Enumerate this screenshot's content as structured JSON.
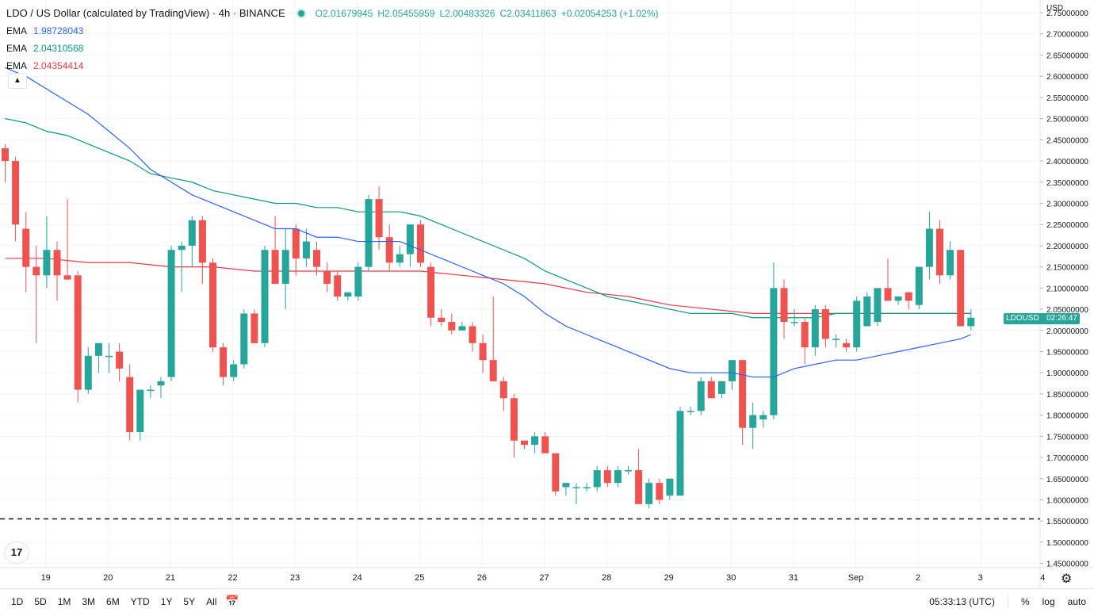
{
  "header": {
    "title": "LDO / US Dollar (calculated by TradingView) · 4h · BINANCE",
    "ohlc": [
      {
        "k": "O",
        "v": "2.01679945"
      },
      {
        "k": "H",
        "v": "2.05455959"
      },
      {
        "k": "L",
        "v": "2.00483326"
      },
      {
        "k": "C",
        "v": "2.03411863"
      }
    ],
    "change": "+0.02054253 (+1.02%)",
    "emas": [
      {
        "label": "EMA",
        "value": "1.98728043",
        "color": "#2962ff"
      },
      {
        "label": "EMA",
        "value": "2.04310568",
        "color": "#089981"
      },
      {
        "label": "EMA",
        "value": "2.04354414",
        "color": "#f23645"
      }
    ]
  },
  "price_axis": {
    "currency": "USD"
  },
  "price_tag": {
    "symbol": "LDOUSD",
    "countdown": "02:26:47"
  },
  "bottom_bar": {
    "timeframes": [
      "1D",
      "5D",
      "1M",
      "3M",
      "6M",
      "YTD",
      "1Y",
      "5Y",
      "All"
    ],
    "clock": "05:33:13 (UTC)",
    "percent_label": "%",
    "log_label": "log",
    "auto_label": "auto"
  },
  "icons": {
    "calendar": "calendar-range-icon",
    "settings": "gear-icon",
    "collapse": "chevron-up-icon",
    "logo": "tradingview-logo-icon"
  },
  "colors": {
    "up": "#26a69a",
    "down": "#ef5350",
    "ema_fast": "#2962ff",
    "ema_mid": "#089981",
    "ema_slow": "#f23645"
  },
  "chart_data": {
    "type": "candlestick",
    "y_ticks": [
      "1.45000000",
      "1.50000000",
      "1.55000000",
      "1.60000000",
      "1.65000000",
      "1.70000000",
      "1.75000000",
      "1.80000000",
      "1.85000000",
      "1.90000000",
      "1.95000000",
      "2.00000000",
      "2.05000000",
      "2.10000000",
      "2.15000000",
      "2.20000000",
      "2.25000000",
      "2.30000000",
      "2.35000000",
      "2.40000000",
      "2.45000000",
      "2.50000000",
      "2.55000000",
      "2.60000000",
      "2.65000000",
      "2.70000000",
      "2.75000000"
    ],
    "ylim": [
      1.44,
      2.78
    ],
    "x_ticks": [
      {
        "label": "19",
        "i": 2
      },
      {
        "label": "20",
        "i": 8
      },
      {
        "label": "21",
        "i": 14
      },
      {
        "label": "22",
        "i": 20
      },
      {
        "label": "23",
        "i": 26
      },
      {
        "label": "24",
        "i": 32
      },
      {
        "label": "25",
        "i": 38
      },
      {
        "label": "26",
        "i": 44
      },
      {
        "label": "27",
        "i": 50
      },
      {
        "label": "28",
        "i": 56
      },
      {
        "label": "29",
        "i": 62
      },
      {
        "label": "30",
        "i": 68
      },
      {
        "label": "31",
        "i": 74
      },
      {
        "label": "Sep",
        "i": 80
      },
      {
        "label": "2",
        "i": 86
      },
      {
        "label": "3",
        "i": 92
      },
      {
        "label": "4",
        "i": 98
      }
    ],
    "candles": [
      [
        2.43,
        2.44,
        2.35,
        2.4
      ],
      [
        2.4,
        2.41,
        2.21,
        2.25
      ],
      [
        2.24,
        2.28,
        2.09,
        2.15
      ],
      [
        2.15,
        2.2,
        1.97,
        2.13
      ],
      [
        2.13,
        2.27,
        2.1,
        2.19
      ],
      [
        2.19,
        2.21,
        2.07,
        2.13
      ],
      [
        2.13,
        2.31,
        2.12,
        2.12
      ],
      [
        2.13,
        2.14,
        1.83,
        1.86
      ],
      [
        1.86,
        1.96,
        1.85,
        1.94
      ],
      [
        1.94,
        1.97,
        1.9,
        1.97
      ],
      [
        1.94,
        1.97,
        1.9,
        1.94
      ],
      [
        1.95,
        1.97,
        1.88,
        1.91
      ],
      [
        1.89,
        1.92,
        1.74,
        1.76
      ],
      [
        1.76,
        1.86,
        1.74,
        1.86
      ],
      [
        1.86,
        1.87,
        1.84,
        1.86
      ],
      [
        1.87,
        1.89,
        1.84,
        1.88
      ],
      [
        1.89,
        2.2,
        1.88,
        2.19
      ],
      [
        2.19,
        2.21,
        2.09,
        2.2
      ],
      [
        2.2,
        2.27,
        2.15,
        2.26
      ],
      [
        2.26,
        2.27,
        2.11,
        2.16
      ],
      [
        2.16,
        2.17,
        1.95,
        1.96
      ],
      [
        1.96,
        1.97,
        1.87,
        1.89
      ],
      [
        1.89,
        1.93,
        1.88,
        1.92
      ],
      [
        1.92,
        2.05,
        1.91,
        2.04
      ],
      [
        2.04,
        2.05,
        1.97,
        1.97
      ],
      [
        1.97,
        2.2,
        1.96,
        2.19
      ],
      [
        2.19,
        2.27,
        2.11,
        2.11
      ],
      [
        2.11,
        2.24,
        2.05,
        2.19
      ],
      [
        2.24,
        2.25,
        2.13,
        2.17
      ],
      [
        2.17,
        2.24,
        2.15,
        2.21
      ],
      [
        2.19,
        2.21,
        2.13,
        2.15
      ],
      [
        2.14,
        2.16,
        2.09,
        2.11
      ],
      [
        2.13,
        2.14,
        2.07,
        2.08
      ],
      [
        2.08,
        2.09,
        2.07,
        2.09
      ],
      [
        2.08,
        2.16,
        2.07,
        2.15
      ],
      [
        2.15,
        2.32,
        2.14,
        2.31
      ],
      [
        2.31,
        2.34,
        2.19,
        2.22
      ],
      [
        2.22,
        2.25,
        2.14,
        2.16
      ],
      [
        2.16,
        2.2,
        2.15,
        2.18
      ],
      [
        2.18,
        2.25,
        2.15,
        2.25
      ],
      [
        2.25,
        2.26,
        2.15,
        2.16
      ],
      [
        2.15,
        2.16,
        2.01,
        2.03
      ],
      [
        2.03,
        2.05,
        2.01,
        2.02
      ],
      [
        2.02,
        2.04,
        1.99,
        2.0
      ],
      [
        2.0,
        2.02,
        2.0,
        2.01
      ],
      [
        2.01,
        2.02,
        1.95,
        1.97
      ],
      [
        1.97,
        1.99,
        1.9,
        1.93
      ],
      [
        1.93,
        2.08,
        1.88,
        1.88
      ],
      [
        1.88,
        1.89,
        1.81,
        1.84
      ],
      [
        1.84,
        1.85,
        1.7,
        1.74
      ],
      [
        1.74,
        1.74,
        1.72,
        1.73
      ],
      [
        1.73,
        1.76,
        1.71,
        1.75
      ],
      [
        1.75,
        1.76,
        1.71,
        1.71
      ],
      [
        1.71,
        1.71,
        1.61,
        1.62
      ],
      [
        1.63,
        1.64,
        1.61,
        1.64
      ],
      [
        1.63,
        1.64,
        1.59,
        1.63
      ],
      [
        1.63,
        1.64,
        1.62,
        1.63
      ],
      [
        1.63,
        1.68,
        1.62,
        1.67
      ],
      [
        1.67,
        1.68,
        1.63,
        1.64
      ],
      [
        1.64,
        1.68,
        1.63,
        1.67
      ],
      [
        1.67,
        1.68,
        1.66,
        1.67
      ],
      [
        1.67,
        1.72,
        1.6,
        1.59
      ],
      [
        1.59,
        1.65,
        1.58,
        1.64
      ],
      [
        1.64,
        1.65,
        1.59,
        1.6
      ],
      [
        1.61,
        1.65,
        1.6,
        1.65
      ],
      [
        1.61,
        1.82,
        1.61,
        1.81
      ],
      [
        1.81,
        1.82,
        1.8,
        1.81
      ],
      [
        1.81,
        1.89,
        1.8,
        1.88
      ],
      [
        1.88,
        1.89,
        1.84,
        1.84
      ],
      [
        1.85,
        1.88,
        1.84,
        1.88
      ],
      [
        1.88,
        1.93,
        1.86,
        1.93
      ],
      [
        1.93,
        1.93,
        1.73,
        1.77
      ],
      [
        1.77,
        1.83,
        1.72,
        1.8
      ],
      [
        1.79,
        1.81,
        1.77,
        1.8
      ],
      [
        1.8,
        2.16,
        1.79,
        2.1
      ],
      [
        2.1,
        2.12,
        1.98,
        2.02
      ],
      [
        2.02,
        2.05,
        2.01,
        2.02
      ],
      [
        2.02,
        2.03,
        1.92,
        1.96
      ],
      [
        1.96,
        2.06,
        1.94,
        2.05
      ],
      [
        2.05,
        2.06,
        1.96,
        1.98
      ],
      [
        1.98,
        1.99,
        1.96,
        1.98
      ],
      [
        1.97,
        1.98,
        1.95,
        1.96
      ],
      [
        1.96,
        2.08,
        1.95,
        2.07
      ],
      [
        2.01,
        2.09,
        2.01,
        2.08
      ],
      [
        2.02,
        2.1,
        2.01,
        2.1
      ],
      [
        2.1,
        2.17,
        2.07,
        2.07
      ],
      [
        2.07,
        2.08,
        2.06,
        2.08
      ],
      [
        2.09,
        2.09,
        2.05,
        2.07
      ],
      [
        2.06,
        2.15,
        2.05,
        2.15
      ],
      [
        2.15,
        2.28,
        2.12,
        2.24
      ],
      [
        2.24,
        2.26,
        2.11,
        2.13
      ],
      [
        2.13,
        2.21,
        2.12,
        2.19
      ],
      [
        2.19,
        2.19,
        2.01,
        2.01
      ],
      [
        2.01,
        2.05,
        2.0,
        2.03
      ]
    ],
    "ema_fast": [
      [
        0,
        2.62
      ],
      [
        2,
        2.6
      ],
      [
        4,
        2.57
      ],
      [
        6,
        2.54
      ],
      [
        8,
        2.51
      ],
      [
        10,
        2.47
      ],
      [
        12,
        2.43
      ],
      [
        14,
        2.38
      ],
      [
        16,
        2.35
      ],
      [
        18,
        2.32
      ],
      [
        20,
        2.3
      ],
      [
        22,
        2.28
      ],
      [
        24,
        2.26
      ],
      [
        26,
        2.24
      ],
      [
        28,
        2.24
      ],
      [
        30,
        2.22
      ],
      [
        32,
        2.22
      ],
      [
        34,
        2.21
      ],
      [
        36,
        2.21
      ],
      [
        38,
        2.21
      ],
      [
        40,
        2.19
      ],
      [
        42,
        2.17
      ],
      [
        44,
        2.15
      ],
      [
        46,
        2.13
      ],
      [
        48,
        2.11
      ],
      [
        50,
        2.08
      ],
      [
        52,
        2.04
      ],
      [
        54,
        2.01
      ],
      [
        56,
        1.99
      ],
      [
        58,
        1.97
      ],
      [
        60,
        1.95
      ],
      [
        62,
        1.93
      ],
      [
        64,
        1.91
      ],
      [
        66,
        1.9
      ],
      [
        68,
        1.9
      ],
      [
        70,
        1.9
      ],
      [
        72,
        1.89
      ],
      [
        74,
        1.89
      ],
      [
        76,
        1.91
      ],
      [
        78,
        1.92
      ],
      [
        80,
        1.93
      ],
      [
        82,
        1.93
      ],
      [
        84,
        1.94
      ],
      [
        86,
        1.95
      ],
      [
        88,
        1.96
      ],
      [
        90,
        1.97
      ],
      [
        92,
        1.98
      ],
      [
        93,
        1.99
      ]
    ],
    "ema_mid": [
      [
        0,
        2.5
      ],
      [
        2,
        2.49
      ],
      [
        4,
        2.47
      ],
      [
        6,
        2.46
      ],
      [
        8,
        2.44
      ],
      [
        10,
        2.42
      ],
      [
        12,
        2.4
      ],
      [
        14,
        2.37
      ],
      [
        16,
        2.36
      ],
      [
        18,
        2.35
      ],
      [
        20,
        2.33
      ],
      [
        22,
        2.32
      ],
      [
        24,
        2.31
      ],
      [
        26,
        2.3
      ],
      [
        28,
        2.3
      ],
      [
        30,
        2.29
      ],
      [
        32,
        2.29
      ],
      [
        34,
        2.28
      ],
      [
        36,
        2.28
      ],
      [
        38,
        2.28
      ],
      [
        40,
        2.27
      ],
      [
        42,
        2.25
      ],
      [
        44,
        2.23
      ],
      [
        46,
        2.21
      ],
      [
        48,
        2.19
      ],
      [
        50,
        2.17
      ],
      [
        52,
        2.14
      ],
      [
        54,
        2.12
      ],
      [
        56,
        2.1
      ],
      [
        58,
        2.08
      ],
      [
        60,
        2.07
      ],
      [
        62,
        2.06
      ],
      [
        64,
        2.05
      ],
      [
        66,
        2.04
      ],
      [
        68,
        2.04
      ],
      [
        70,
        2.04
      ],
      [
        72,
        2.03
      ],
      [
        74,
        2.03
      ],
      [
        76,
        2.03
      ],
      [
        78,
        2.03
      ],
      [
        80,
        2.04
      ],
      [
        82,
        2.04
      ],
      [
        84,
        2.04
      ],
      [
        86,
        2.04
      ],
      [
        88,
        2.04
      ],
      [
        90,
        2.04
      ],
      [
        92,
        2.04
      ],
      [
        93,
        2.04
      ]
    ],
    "ema_slow": [
      [
        0,
        2.17
      ],
      [
        4,
        2.17
      ],
      [
        8,
        2.16
      ],
      [
        12,
        2.16
      ],
      [
        16,
        2.15
      ],
      [
        20,
        2.15
      ],
      [
        24,
        2.14
      ],
      [
        28,
        2.14
      ],
      [
        32,
        2.14
      ],
      [
        36,
        2.14
      ],
      [
        40,
        2.14
      ],
      [
        44,
        2.13
      ],
      [
        48,
        2.12
      ],
      [
        52,
        2.11
      ],
      [
        56,
        2.09
      ],
      [
        60,
        2.08
      ],
      [
        64,
        2.06
      ],
      [
        68,
        2.05
      ],
      [
        72,
        2.04
      ],
      [
        76,
        2.04
      ],
      [
        80,
        2.04
      ],
      [
        84,
        2.04
      ],
      [
        88,
        2.04
      ],
      [
        92,
        2.04
      ],
      [
        93,
        2.04
      ]
    ],
    "support_level": 1.555
  }
}
